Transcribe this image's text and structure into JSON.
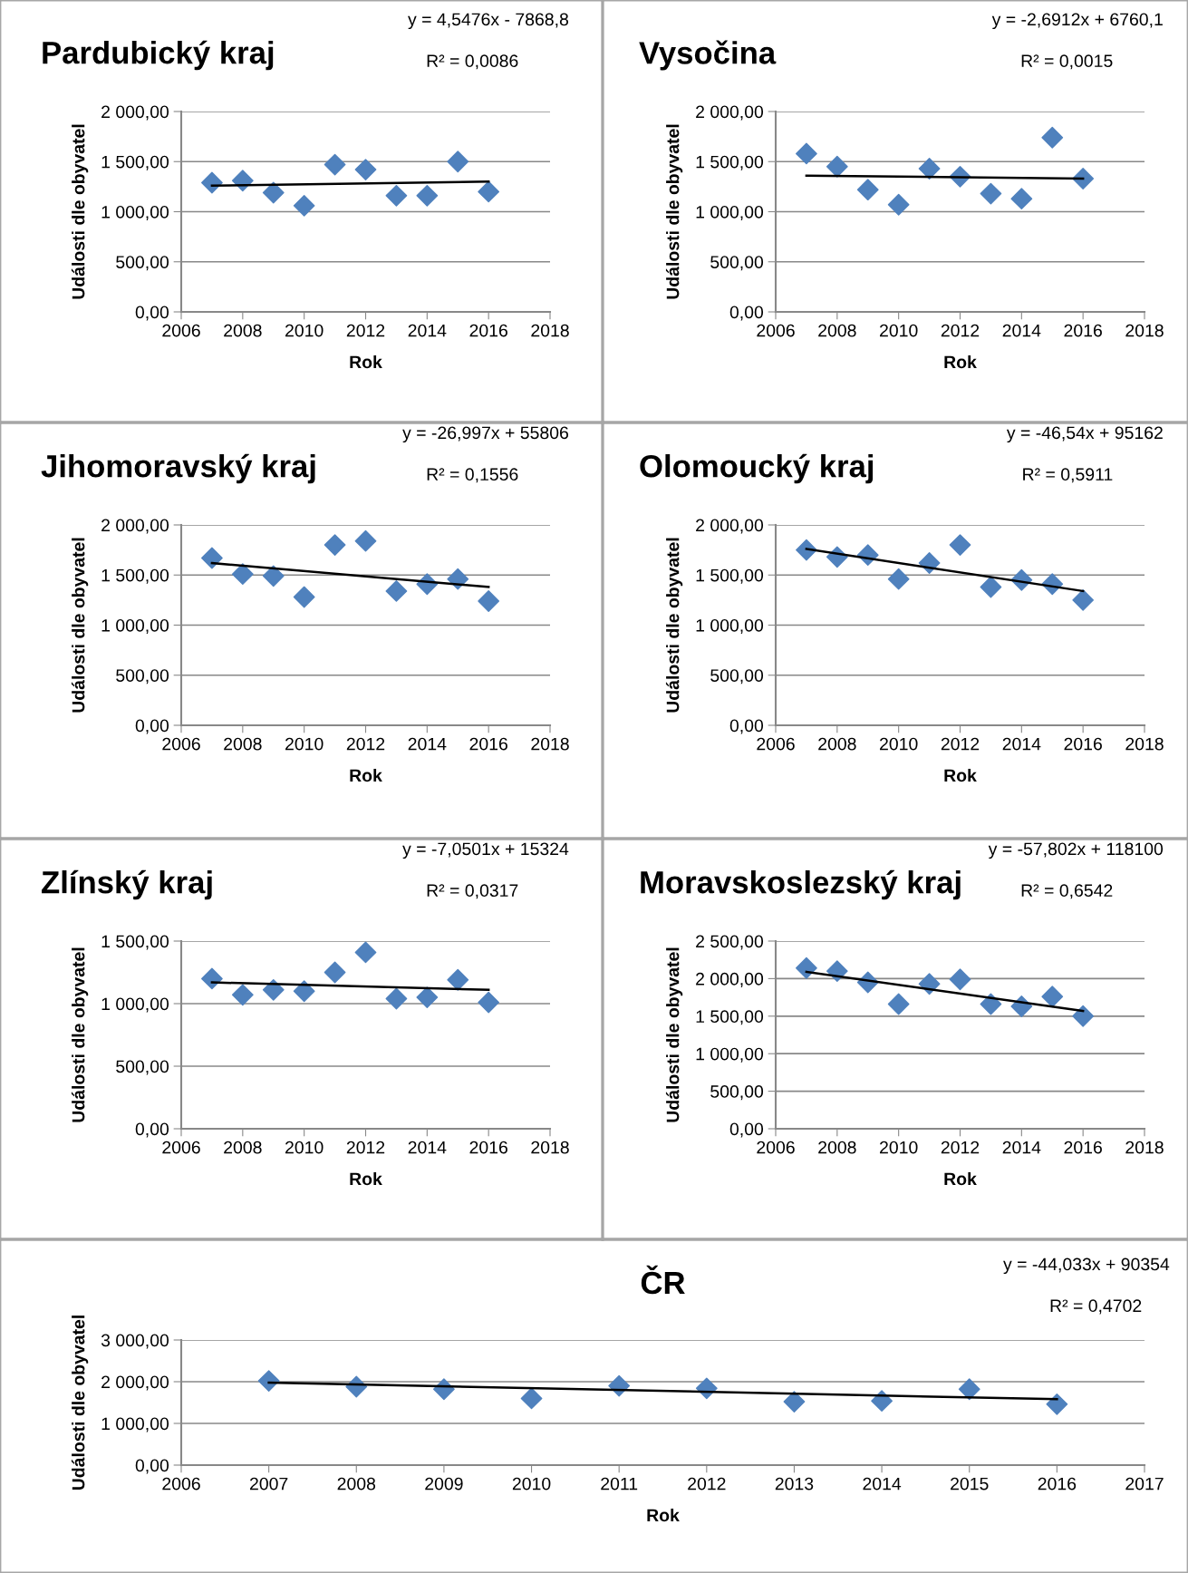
{
  "chart_data": [
    {
      "type": "scatter",
      "title": "Pardubický kraj",
      "xlabel": "Rok",
      "ylabel": "Události dle obyvatel",
      "annotations": [
        "y = 4,5476x - 7868,8",
        "R² = 0,0086"
      ],
      "xlim": [
        2006,
        2018
      ],
      "xticks": [
        2006,
        2008,
        2010,
        2012,
        2014,
        2016,
        2018
      ],
      "ylim": [
        0,
        2000
      ],
      "yticks": [
        {
          "value": 0,
          "label": "0,00"
        },
        {
          "value": 500,
          "label": "500,00"
        },
        {
          "value": 1000,
          "label": "1 000,00"
        },
        {
          "value": 1500,
          "label": "1 500,00"
        },
        {
          "value": 2000,
          "label": "2 000,00"
        }
      ],
      "grid": "y",
      "series": [
        {
          "marker": "diamond",
          "color": "#4f81bd",
          "x": [
            2007,
            2008,
            2009,
            2010,
            2011,
            2012,
            2013,
            2014,
            2015,
            2016
          ],
          "values": [
            1290,
            1310,
            1190,
            1060,
            1470,
            1420,
            1160,
            1160,
            1500,
            1200
          ]
        },
        {
          "type": "line",
          "color": "#000000",
          "x": [
            2007,
            2016
          ],
          "values": [
            1260,
            1300
          ]
        }
      ]
    },
    {
      "type": "scatter",
      "title": "Vysočina",
      "xlabel": "Rok",
      "ylabel": "Události dle obyvatel",
      "annotations": [
        "y = -2,6912x + 6760,1",
        "R² = 0,0015"
      ],
      "xlim": [
        2006,
        2018
      ],
      "xticks": [
        2006,
        2008,
        2010,
        2012,
        2014,
        2016,
        2018
      ],
      "ylim": [
        0,
        2000
      ],
      "yticks": [
        {
          "value": 0,
          "label": "0,00"
        },
        {
          "value": 500,
          "label": "500,00"
        },
        {
          "value": 1000,
          "label": "1 000,00"
        },
        {
          "value": 1500,
          "label": "1 500,00"
        },
        {
          "value": 2000,
          "label": "2 000,00"
        }
      ],
      "grid": "y",
      "series": [
        {
          "marker": "diamond",
          "color": "#4f81bd",
          "x": [
            2007,
            2008,
            2009,
            2010,
            2011,
            2012,
            2013,
            2014,
            2015,
            2016
          ],
          "values": [
            1580,
            1450,
            1220,
            1070,
            1430,
            1350,
            1180,
            1130,
            1740,
            1330
          ]
        },
        {
          "type": "line",
          "color": "#000000",
          "x": [
            2007,
            2016
          ],
          "values": [
            1360,
            1330
          ]
        }
      ]
    },
    {
      "type": "scatter",
      "title": "Jihomoravský kraj",
      "xlabel": "Rok",
      "ylabel": "Události dle obyvatel",
      "annotations": [
        "y = -26,997x + 55806",
        "R² = 0,1556"
      ],
      "xlim": [
        2006,
        2018
      ],
      "xticks": [
        2006,
        2008,
        2010,
        2012,
        2014,
        2016,
        2018
      ],
      "ylim": [
        0,
        2000
      ],
      "yticks": [
        {
          "value": 0,
          "label": "0,00"
        },
        {
          "value": 500,
          "label": "500,00"
        },
        {
          "value": 1000,
          "label": "1 000,00"
        },
        {
          "value": 1500,
          "label": "1 500,00"
        },
        {
          "value": 2000,
          "label": "2 000,00"
        }
      ],
      "grid": "y",
      "series": [
        {
          "marker": "diamond",
          "color": "#4f81bd",
          "x": [
            2007,
            2008,
            2009,
            2010,
            2011,
            2012,
            2013,
            2014,
            2015,
            2016
          ],
          "values": [
            1670,
            1510,
            1490,
            1280,
            1800,
            1840,
            1340,
            1410,
            1460,
            1240
          ]
        },
        {
          "type": "line",
          "color": "#000000",
          "x": [
            2007,
            2016
          ],
          "values": [
            1620,
            1380
          ]
        }
      ]
    },
    {
      "type": "scatter",
      "title": "Olomoucký kraj",
      "xlabel": "Rok",
      "ylabel": "Události dle obyvatel",
      "annotations": [
        "y = -46,54x + 95162",
        "R² = 0,5911"
      ],
      "xlim": [
        2006,
        2018
      ],
      "xticks": [
        2006,
        2008,
        2010,
        2012,
        2014,
        2016,
        2018
      ],
      "ylim": [
        0,
        2000
      ],
      "yticks": [
        {
          "value": 0,
          "label": "0,00"
        },
        {
          "value": 500,
          "label": "500,00"
        },
        {
          "value": 1000,
          "label": "1 000,00"
        },
        {
          "value": 1500,
          "label": "1 500,00"
        },
        {
          "value": 2000,
          "label": "2 000,00"
        }
      ],
      "grid": "y",
      "series": [
        {
          "marker": "diamond",
          "color": "#4f81bd",
          "x": [
            2007,
            2008,
            2009,
            2010,
            2011,
            2012,
            2013,
            2014,
            2015,
            2016
          ],
          "values": [
            1750,
            1680,
            1700,
            1460,
            1620,
            1800,
            1380,
            1450,
            1410,
            1250
          ]
        },
        {
          "type": "line",
          "color": "#000000",
          "x": [
            2007,
            2016
          ],
          "values": [
            1760,
            1340
          ]
        }
      ]
    },
    {
      "type": "scatter",
      "title": "Zlínský kraj",
      "xlabel": "Rok",
      "ylabel": "Události dle obyvatel",
      "annotations": [
        "y = -7,0501x + 15324",
        "R² = 0,0317"
      ],
      "xlim": [
        2006,
        2018
      ],
      "xticks": [
        2006,
        2008,
        2010,
        2012,
        2014,
        2016,
        2018
      ],
      "ylim": [
        0,
        1500
      ],
      "yticks": [
        {
          "value": 0,
          "label": "0,00"
        },
        {
          "value": 500,
          "label": "500,00"
        },
        {
          "value": 1000,
          "label": "1 000,00"
        },
        {
          "value": 1500,
          "label": "1 500,00"
        }
      ],
      "grid": "y",
      "series": [
        {
          "marker": "diamond",
          "color": "#4f81bd",
          "x": [
            2007,
            2008,
            2009,
            2010,
            2011,
            2012,
            2013,
            2014,
            2015,
            2016
          ],
          "values": [
            1200,
            1070,
            1110,
            1100,
            1250,
            1410,
            1040,
            1050,
            1190,
            1010
          ]
        },
        {
          "type": "line",
          "color": "#000000",
          "x": [
            2007,
            2016
          ],
          "values": [
            1170,
            1110
          ]
        }
      ]
    },
    {
      "type": "scatter",
      "title": "Moravskoslezský kraj",
      "xlabel": "Rok",
      "ylabel": "Události dle obyvatel",
      "annotations": [
        "y = -57,802x + 118100",
        "R² = 0,6542"
      ],
      "xlim": [
        2006,
        2018
      ],
      "xticks": [
        2006,
        2008,
        2010,
        2012,
        2014,
        2016,
        2018
      ],
      "ylim": [
        0,
        2500
      ],
      "yticks": [
        {
          "value": 0,
          "label": "0,00"
        },
        {
          "value": 500,
          "label": "500,00"
        },
        {
          "value": 1000,
          "label": "1 000,00"
        },
        {
          "value": 1500,
          "label": "1 500,00"
        },
        {
          "value": 2000,
          "label": "2 000,00"
        },
        {
          "value": 2500,
          "label": "2 500,00"
        }
      ],
      "grid": "y",
      "series": [
        {
          "marker": "diamond",
          "color": "#4f81bd",
          "x": [
            2007,
            2008,
            2009,
            2010,
            2011,
            2012,
            2013,
            2014,
            2015,
            2016
          ],
          "values": [
            2140,
            2100,
            1950,
            1660,
            1930,
            1990,
            1660,
            1630,
            1760,
            1500
          ]
        },
        {
          "type": "line",
          "color": "#000000",
          "x": [
            2007,
            2016
          ],
          "values": [
            2090,
            1570
          ]
        }
      ]
    },
    {
      "type": "scatter",
      "title": "ČR",
      "xlabel": "Rok",
      "ylabel": "Události dle obyvatel",
      "annotations": [
        "y = -44,033x + 90354",
        "R² = 0,4702"
      ],
      "xlim": [
        2006,
        2017
      ],
      "xticks": [
        2006,
        2007,
        2008,
        2009,
        2010,
        2011,
        2012,
        2013,
        2014,
        2015,
        2016,
        2017
      ],
      "ylim": [
        0,
        3000
      ],
      "yticks": [
        {
          "value": 0,
          "label": "0,00"
        },
        {
          "value": 1000,
          "label": "1 000,00"
        },
        {
          "value": 2000,
          "label": "2 000,00"
        },
        {
          "value": 3000,
          "label": "3 000,00"
        }
      ],
      "grid": "y",
      "series": [
        {
          "marker": "diamond",
          "color": "#4f81bd",
          "x": [
            2007,
            2008,
            2009,
            2010,
            2011,
            2012,
            2013,
            2014,
            2015,
            2016
          ],
          "values": [
            2020,
            1880,
            1820,
            1600,
            1900,
            1840,
            1520,
            1540,
            1820,
            1460
          ]
        },
        {
          "type": "line",
          "color": "#000000",
          "x": [
            2007,
            2016
          ],
          "values": [
            1980,
            1580
          ]
        }
      ]
    }
  ]
}
